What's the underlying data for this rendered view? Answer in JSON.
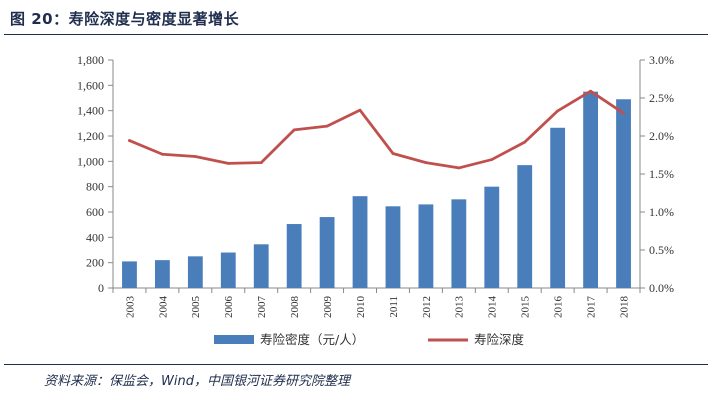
{
  "header": {
    "title": "图 20：寿险深度与密度显著增长"
  },
  "footer": {
    "source": "资料来源：保监会，Wind，中国银河证券研究院整理"
  },
  "chart_data": {
    "type": "bar",
    "categories": [
      "2003",
      "2004",
      "2005",
      "2006",
      "2007",
      "2008",
      "2009",
      "2010",
      "2011",
      "2012",
      "2013",
      "2014",
      "2015",
      "2016",
      "2017",
      "2018"
    ],
    "series": [
      {
        "name": "寿险密度（元/人）",
        "type": "bar",
        "axis": "left",
        "color": "#4a7ebb",
        "values": [
          210,
          220,
          250,
          280,
          345,
          505,
          560,
          725,
          645,
          660,
          700,
          800,
          970,
          1265,
          1550,
          1490
        ]
      },
      {
        "name": "寿险深度",
        "type": "line",
        "axis": "right",
        "color": "#c0504d",
        "values": [
          1.94,
          1.76,
          1.73,
          1.64,
          1.65,
          2.08,
          2.13,
          2.34,
          1.77,
          1.65,
          1.58,
          1.69,
          1.92,
          2.33,
          2.59,
          2.3
        ]
      }
    ],
    "y_left": {
      "min": 0,
      "max": 1800,
      "ticks": [
        0,
        200,
        400,
        600,
        800,
        1000,
        1200,
        1400,
        1600,
        1800
      ],
      "tick_labels": [
        "0",
        "200",
        "400",
        "600",
        "800",
        "1,000",
        "1,200",
        "1,400",
        "1,600",
        "1,800"
      ]
    },
    "y_right": {
      "min": 0,
      "max": 3.0,
      "ticks": [
        0,
        0.5,
        1.0,
        1.5,
        2.0,
        2.5,
        3.0
      ],
      "tick_labels": [
        "0.0%",
        "0.5%",
        "1.0%",
        "1.5%",
        "2.0%",
        "2.5%",
        "3.0%"
      ]
    },
    "grid": false,
    "legend_position": "bottom"
  }
}
